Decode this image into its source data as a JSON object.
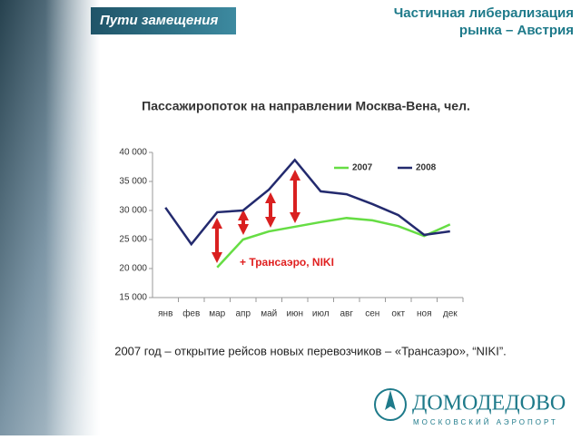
{
  "header": {
    "section": "Пути замещения",
    "title_line1": "Частичная либерализация",
    "title_line2": "рынка – Австрия"
  },
  "chart_data": {
    "type": "line",
    "title": "Пассажиропоток на направлении Москва-Вена, чел.",
    "categories": [
      "янв",
      "фев",
      "мар",
      "апр",
      "май",
      "июн",
      "июл",
      "авг",
      "сен",
      "окт",
      "ноя",
      "дек"
    ],
    "series": [
      {
        "name": "2007",
        "color": "#66dd44",
        "values": [
          null,
          null,
          20200,
          25000,
          26400,
          27200,
          28000,
          28700,
          28300,
          27300,
          25600,
          27600
        ]
      },
      {
        "name": "2008",
        "color": "#232a6e",
        "values": [
          30500,
          24200,
          29700,
          30000,
          33600,
          38700,
          33300,
          32800,
          31100,
          29200,
          25800,
          26400
        ]
      }
    ],
    "ylim": [
      15000,
      40000
    ],
    "yticks": [
      {
        "value": 15000,
        "label": "15 000"
      },
      {
        "value": 20000,
        "label": "20 000"
      },
      {
        "value": 25000,
        "label": "25 000"
      },
      {
        "value": 30000,
        "label": "30 000"
      },
      {
        "value": 35000,
        "label": "35 000"
      },
      {
        "value": 40000,
        "label": "40 000"
      }
    ],
    "grid": false,
    "legend": "top-right",
    "annotation": "+ Трансаэро, NIKI"
  },
  "footnote": "2007 год – открытие рейсов новых перевозчиков – «Трансаэро», “NIKI”.",
  "logo": {
    "name": "ДОМОДЕДОВО",
    "subtitle": "МОСКОВСКИЙ АЭРОПОРТ"
  }
}
